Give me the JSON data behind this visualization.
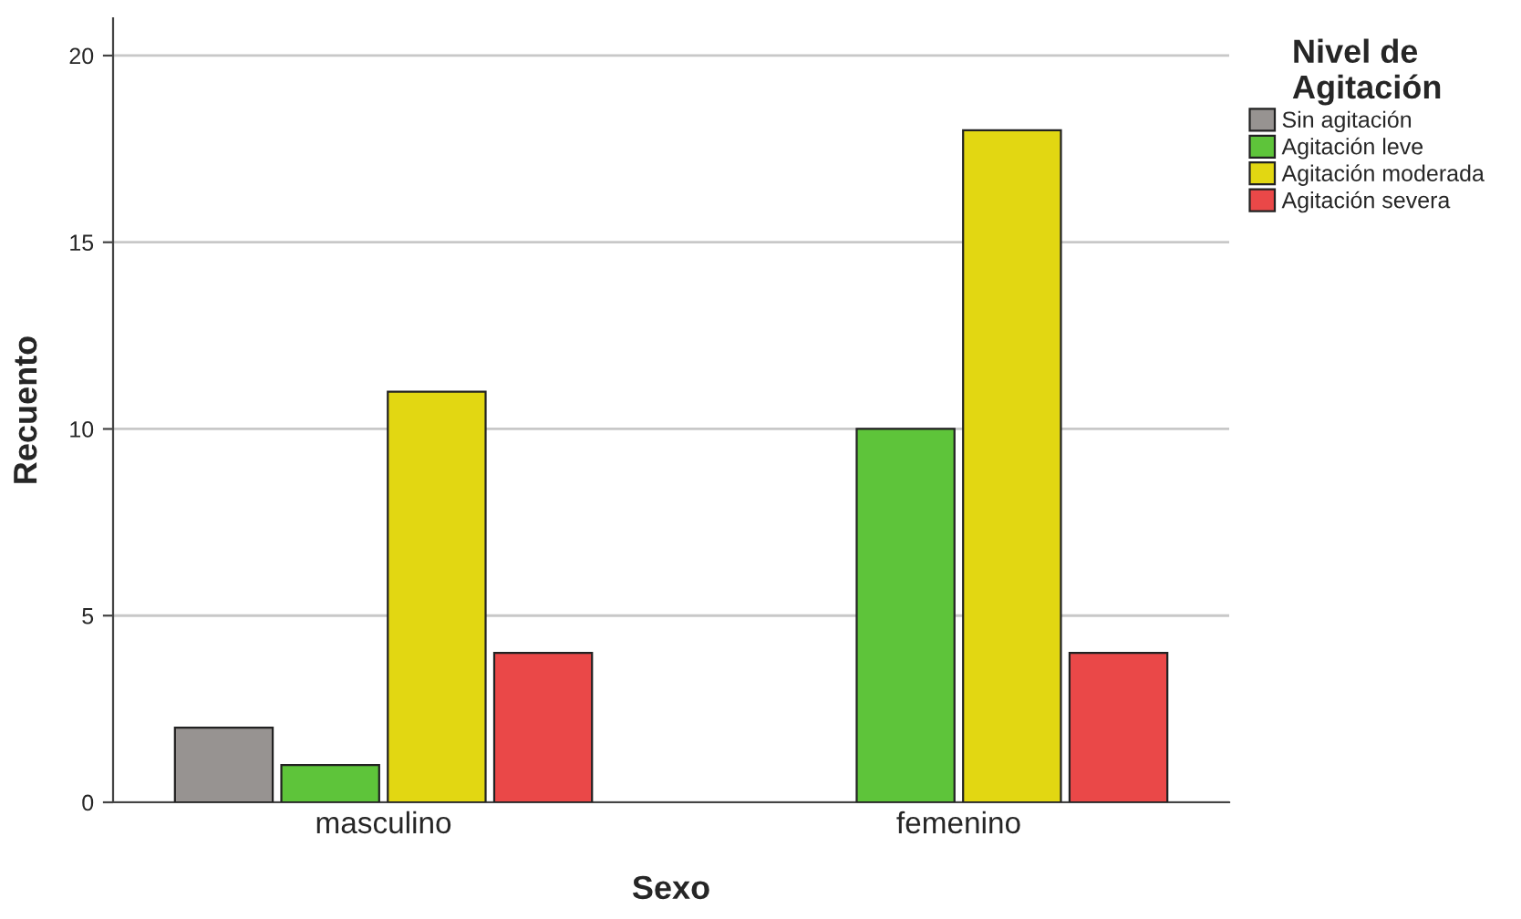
{
  "chart_data": {
    "type": "bar",
    "xlabel": "Sexo",
    "ylabel": "Recuento",
    "legend_title": "Nivel de\nAgitación",
    "categories": [
      "masculino",
      "femenino"
    ],
    "series": [
      {
        "name": "Sin agitación",
        "color": "#979391",
        "values": [
          2,
          null
        ]
      },
      {
        "name": "Agitación leve",
        "color": "#5ec43a",
        "values": [
          1,
          10
        ]
      },
      {
        "name": "Agitación moderada",
        "color": "#e2d712",
        "values": [
          11,
          18
        ]
      },
      {
        "name": "Agitación severa",
        "color": "#ea4848",
        "values": [
          4,
          4
        ]
      }
    ],
    "ylim": [
      0,
      21
    ],
    "yticks": [
      0,
      5,
      10,
      15,
      20
    ],
    "grid": "y",
    "legend": "right"
  }
}
